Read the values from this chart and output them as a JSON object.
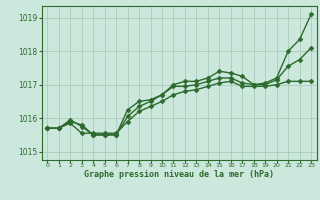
{
  "background_color": "#cce8dc",
  "plot_bg_color": "#cce8dc",
  "grid_color": "#aaccbb",
  "line_color": "#2d6a2d",
  "title": "Graphe pression niveau de la mer (hPa)",
  "xlim": [
    -0.5,
    23.5
  ],
  "ylim": [
    1014.75,
    1019.35
  ],
  "yticks": [
    1015,
    1016,
    1017,
    1018,
    1019
  ],
  "xticks": [
    0,
    1,
    2,
    3,
    4,
    5,
    6,
    7,
    8,
    9,
    10,
    11,
    12,
    13,
    14,
    15,
    16,
    17,
    18,
    19,
    20,
    21,
    22,
    23
  ],
  "series": [
    [
      1015.7,
      1015.7,
      1015.9,
      1015.8,
      1015.5,
      1015.5,
      1015.5,
      1016.05,
      1016.35,
      1016.5,
      1016.7,
      1017.0,
      1017.1,
      1017.1,
      1017.2,
      1017.4,
      1017.35,
      1017.25,
      1017.0,
      1017.05,
      1017.2,
      1018.0,
      1018.35,
      1019.1
    ],
    [
      1015.7,
      1015.7,
      1015.85,
      1015.55,
      1015.55,
      1015.55,
      1015.55,
      1015.9,
      1016.2,
      1016.35,
      1016.5,
      1016.7,
      1016.8,
      1016.85,
      1016.95,
      1017.05,
      1017.1,
      1016.95,
      1016.95,
      1016.95,
      1017.0,
      1017.1,
      1017.1,
      1017.1
    ],
    [
      1015.7,
      1015.7,
      1015.95,
      1015.75,
      1015.5,
      1015.5,
      1015.5,
      1016.25,
      1016.5,
      1016.55,
      1016.7,
      1016.95,
      1016.95,
      1017.0,
      1017.1,
      1017.2,
      1017.2,
      1017.05,
      1017.0,
      1017.0,
      1017.15,
      1017.55,
      1017.75,
      1018.1
    ]
  ],
  "marker": "D",
  "markersize": 2.5,
  "linewidth": 1.0
}
